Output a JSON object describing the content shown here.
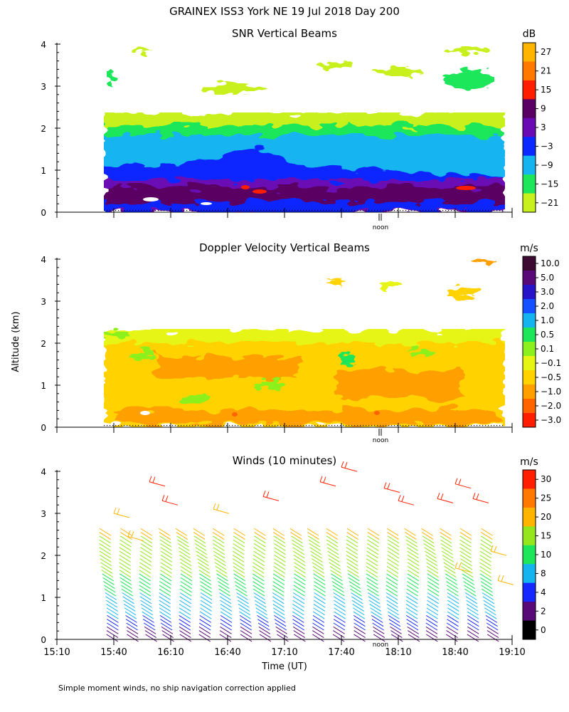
{
  "figure": {
    "title": "GRAINEX ISS3 York NE   19 Jul 2018 Day 200",
    "footnote": "Simple moment winds, no ship navigation correction applied",
    "y_axis_shared_label": "Altitude (km)",
    "x_axis_label": "Time (UT)",
    "noon_label": "noon"
  },
  "chart_data": [
    {
      "type": "heatmap",
      "title": "SNR Vertical Beams",
      "colorbar_unit": "dB",
      "colorbar_labels": [
        "27",
        "21",
        "15",
        "9",
        "3",
        "−3",
        "−9",
        "−15",
        "−21"
      ],
      "colorbar_colors": [
        "#ffb400",
        "#ff7800",
        "#ff1e00",
        "#5a0064",
        "#6a0ab4",
        "#0a28ff",
        "#14b4f0",
        "#1ee65a",
        "#c8f01e"
      ],
      "y_tick_labels": [
        "0",
        "1",
        "2",
        "3",
        "4"
      ],
      "x_range": [
        "15:10",
        "19:10"
      ],
      "ylim": [
        0,
        4
      ],
      "xlabel": "",
      "ylabel": ""
    },
    {
      "type": "heatmap",
      "title": "Doppler Velocity Vertical Beams",
      "colorbar_unit": "m/s",
      "colorbar_labels": [
        "10.0",
        "5.0",
        "3.0",
        "2.0",
        "1.0",
        "0.5",
        "0.1",
        "−0.1",
        "−0.5",
        "−1.0",
        "−2.0",
        "−3.0"
      ],
      "colorbar_colors": [
        "#3c0a32",
        "#5a0a78",
        "#2814c8",
        "#1450ff",
        "#14b4f0",
        "#1ee65a",
        "#8cf01e",
        "#e6f514",
        "#ffd200",
        "#ffa000",
        "#ff6400",
        "#ff1e00"
      ],
      "y_tick_labels": [
        "0",
        "1",
        "2",
        "3",
        "4"
      ],
      "x_range": [
        "15:10",
        "19:10"
      ],
      "ylim": [
        0,
        4
      ],
      "xlabel": "",
      "ylabel": "Altitude (km)"
    },
    {
      "type": "scatter",
      "title": "Winds (10 minutes)",
      "colorbar_unit": "m/s",
      "colorbar_labels": [
        "30",
        "25",
        "20",
        "15",
        "10",
        "8",
        "4",
        "2",
        "0"
      ],
      "colorbar_colors": [
        "#ff1e00",
        "#ff7800",
        "#ffb400",
        "#96e61e",
        "#1ee65a",
        "#14b4f0",
        "#1428ff",
        "#5a0a78",
        "#000000"
      ],
      "y_tick_labels": [
        "0",
        "1",
        "2",
        "3",
        "4"
      ],
      "x_tick_labels": [
        "15:10",
        "15:40",
        "16:10",
        "16:40",
        "17:10",
        "17:40",
        "18:10",
        "18:40",
        "19:10"
      ],
      "profile_times": [
        "15:36",
        "15:46",
        "15:56",
        "16:06",
        "16:16",
        "16:26",
        "16:36",
        "16:46",
        "16:56",
        "17:06",
        "17:16",
        "17:26",
        "17:36",
        "17:46",
        "17:56",
        "18:06",
        "18:16",
        "18:26",
        "18:36",
        "18:46",
        "18:56"
      ],
      "ylim": [
        0,
        4
      ],
      "xlabel": "Time (UT)",
      "ylabel": ""
    }
  ]
}
